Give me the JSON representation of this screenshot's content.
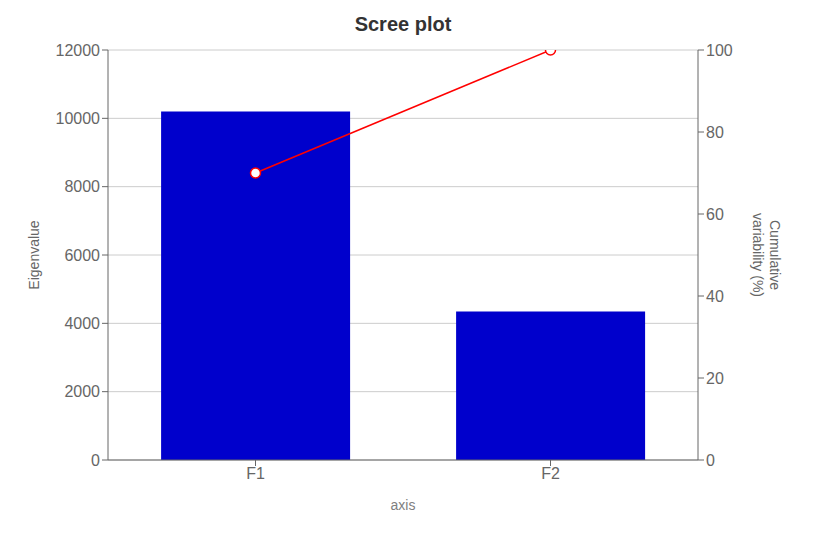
{
  "chart_data": {
    "type": "bar",
    "title": "Scree plot",
    "x_label": "axis",
    "y_label": "Eigenvalue",
    "y2_label": "Cumulative\nvariability (%)",
    "categories": [
      "F1",
      "F2"
    ],
    "series": [
      {
        "type": "bar",
        "color": "#0000CC",
        "values": [
          10200,
          4350
        ]
      },
      {
        "type": "line",
        "axis": "y2",
        "color": "#FF0000",
        "marker": "circle",
        "values": [
          70.0,
          100.0
        ]
      }
    ],
    "ylim": [
      0,
      12000
    ],
    "yticks": [
      0,
      2000,
      4000,
      6000,
      8000,
      10000,
      12000
    ],
    "y2lim": [
      0,
      100
    ],
    "y2ticks": [
      0,
      20,
      40,
      60,
      80,
      100
    ],
    "grid": true
  }
}
